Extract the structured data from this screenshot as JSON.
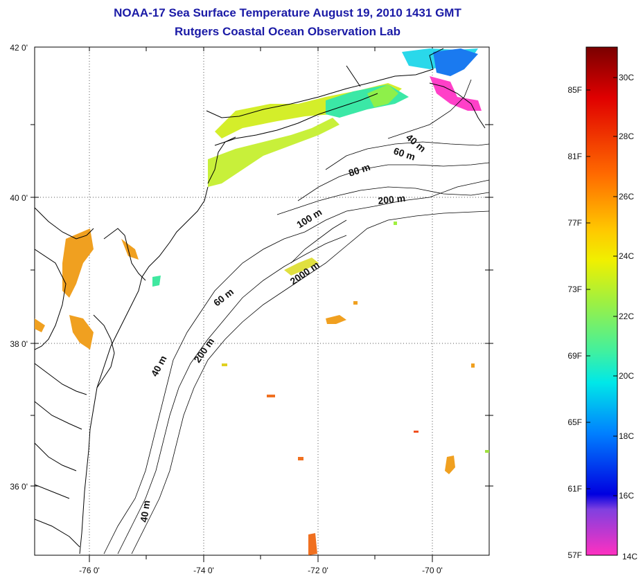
{
  "header": {
    "title": "NOAA-17 Sea Surface Temperature August 19, 2010 1431 GMT",
    "subtitle": "Rutgers Coastal Ocean Observation Lab"
  },
  "map": {
    "lon_labels": [
      "-76 0'",
      "-74 0'",
      "-72 0'",
      "-70 0'"
    ],
    "lat_labels": [
      "42 0'",
      "40 0'",
      "38 0'",
      "36 0'"
    ],
    "depth_labels": [
      "40 m",
      "60 m",
      "80 m",
      "200 m",
      "100 m",
      "2000 m",
      "60 m",
      "40 m",
      "200 m",
      "40 m"
    ],
    "colors": {
      "title": "#1a1aa6",
      "land_outline": "#000000",
      "grid": "#555555"
    }
  },
  "colorbar": {
    "f_labels": [
      "85F",
      "81F",
      "77F",
      "73F",
      "69F",
      "65F",
      "61F",
      "57F"
    ],
    "c_labels": [
      "30C",
      "28C",
      "26C",
      "24C",
      "22C",
      "20C",
      "18C",
      "16C",
      "14C"
    ],
    "gradient": [
      "#7a0000",
      "#e00000",
      "#ff6a00",
      "#ffc800",
      "#f0f000",
      "#a0f040",
      "#40f0a0",
      "#00e8e8",
      "#0080ff",
      "#0000e0",
      "#8040e0",
      "#ff30c0"
    ]
  }
}
